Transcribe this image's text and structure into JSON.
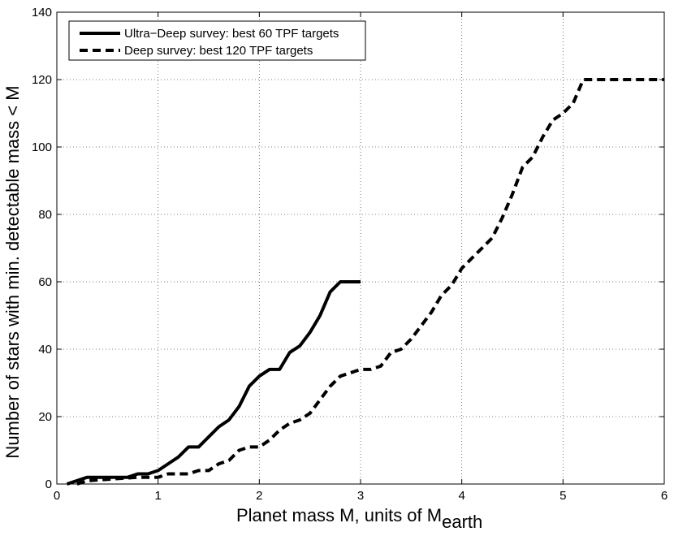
{
  "chart_data": {
    "type": "line",
    "title": "",
    "xlabel": "Planet mass M, units of M",
    "xlabel_sub": "earth",
    "ylabel": "Number of stars with min. detectable mass < M",
    "xlim": [
      0,
      6
    ],
    "ylim": [
      0,
      140
    ],
    "xticks": [
      0,
      1,
      2,
      3,
      4,
      5,
      6
    ],
    "yticks": [
      0,
      20,
      40,
      60,
      80,
      100,
      120,
      140
    ],
    "grid": true,
    "legend_position": "top-left",
    "series": [
      {
        "name": "Ultra−Deep survey: best 60 TPF targets",
        "style": "solid",
        "color": "#000000",
        "x": [
          0.1,
          0.3,
          0.7,
          0.8,
          0.9,
          1.0,
          1.1,
          1.2,
          1.3,
          1.4,
          1.5,
          1.6,
          1.7,
          1.8,
          1.9,
          2.0,
          2.1,
          2.2,
          2.3,
          2.4,
          2.5,
          2.6,
          2.7,
          2.8,
          2.9,
          3.0
        ],
        "y": [
          0,
          2,
          2,
          3,
          3,
          4,
          6,
          8,
          11,
          11,
          14,
          17,
          19,
          23,
          29,
          32,
          34,
          34,
          39,
          41,
          45,
          50,
          57,
          60,
          60,
          60
        ]
      },
      {
        "name": "Deep survey: best 120 TPF targets",
        "style": "dashed",
        "color": "#000000",
        "x": [
          0.2,
          0.3,
          0.8,
          0.9,
          1.0,
          1.1,
          1.2,
          1.3,
          1.4,
          1.5,
          1.6,
          1.7,
          1.8,
          1.9,
          2.0,
          2.1,
          2.2,
          2.3,
          2.4,
          2.5,
          2.6,
          2.7,
          2.8,
          2.9,
          3.0,
          3.1,
          3.2,
          3.3,
          3.4,
          3.5,
          3.6,
          3.7,
          3.8,
          3.9,
          4.0,
          4.1,
          4.2,
          4.3,
          4.4,
          4.5,
          4.6,
          4.7,
          4.8,
          4.9,
          5.0,
          5.1,
          5.2,
          5.3,
          6.0
        ],
        "y": [
          0,
          1,
          2,
          2,
          2,
          3,
          3,
          3,
          4,
          4,
          6,
          7,
          10,
          11,
          11,
          13,
          16,
          18,
          19,
          21,
          25,
          29,
          32,
          33,
          34,
          34,
          35,
          39,
          40,
          43,
          47,
          51,
          56,
          59,
          64,
          67,
          70,
          73,
          79,
          86,
          94,
          97,
          103,
          108,
          110,
          113,
          120,
          120,
          120
        ]
      }
    ]
  }
}
